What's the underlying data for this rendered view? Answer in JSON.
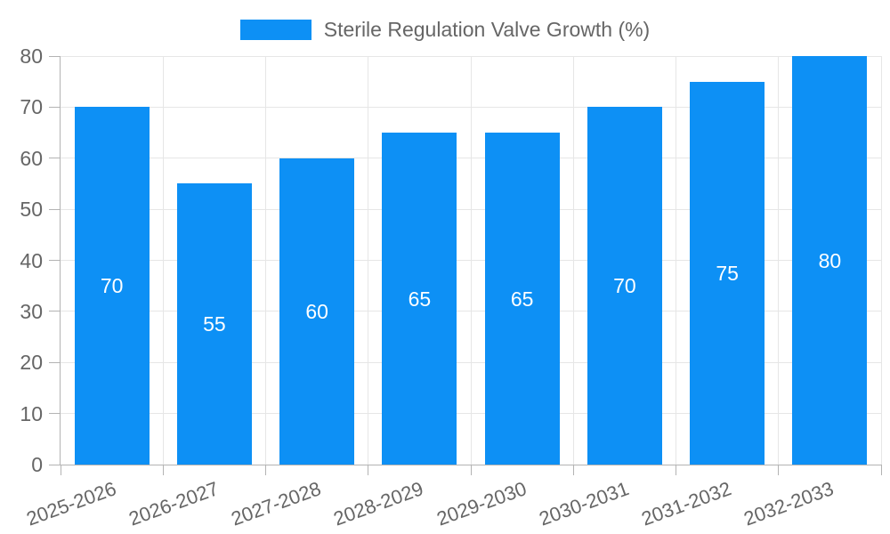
{
  "chart_data": {
    "type": "bar",
    "title": "Sterile Regulation Valve Growth (%)",
    "legend": {
      "position": "top-center",
      "items": [
        {
          "label": "Sterile Regulation Valve Growth (%)",
          "swatch_color": "#0d90f5"
        }
      ]
    },
    "categories": [
      "2025-2026",
      "2026-2027",
      "2027-2028",
      "2028-2029",
      "2029-2030",
      "2030-2031",
      "2031-2032",
      "2032-2033"
    ],
    "series": [
      {
        "name": "Sterile Regulation Valve Growth (%)",
        "values": [
          70,
          55,
          60,
          65,
          65,
          70,
          75,
          80
        ]
      }
    ],
    "data_labels": [
      "70",
      "55",
      "60",
      "65",
      "65",
      "70",
      "75",
      "80"
    ],
    "xlabel": "",
    "ylabel": "",
    "ylim": [
      0,
      80
    ],
    "yticks": [
      0,
      10,
      20,
      30,
      40,
      50,
      60,
      70,
      80
    ],
    "grid": true,
    "x_label_rotation_deg": 20,
    "colors": {
      "bar": "#0d90f5",
      "bar_value_text": "#ffffff",
      "tick_text": "#666666",
      "legend_text": "#666666",
      "gridline": "#e6e6e6",
      "axis_line": "#b3b3b3",
      "background": "#ffffff"
    }
  }
}
